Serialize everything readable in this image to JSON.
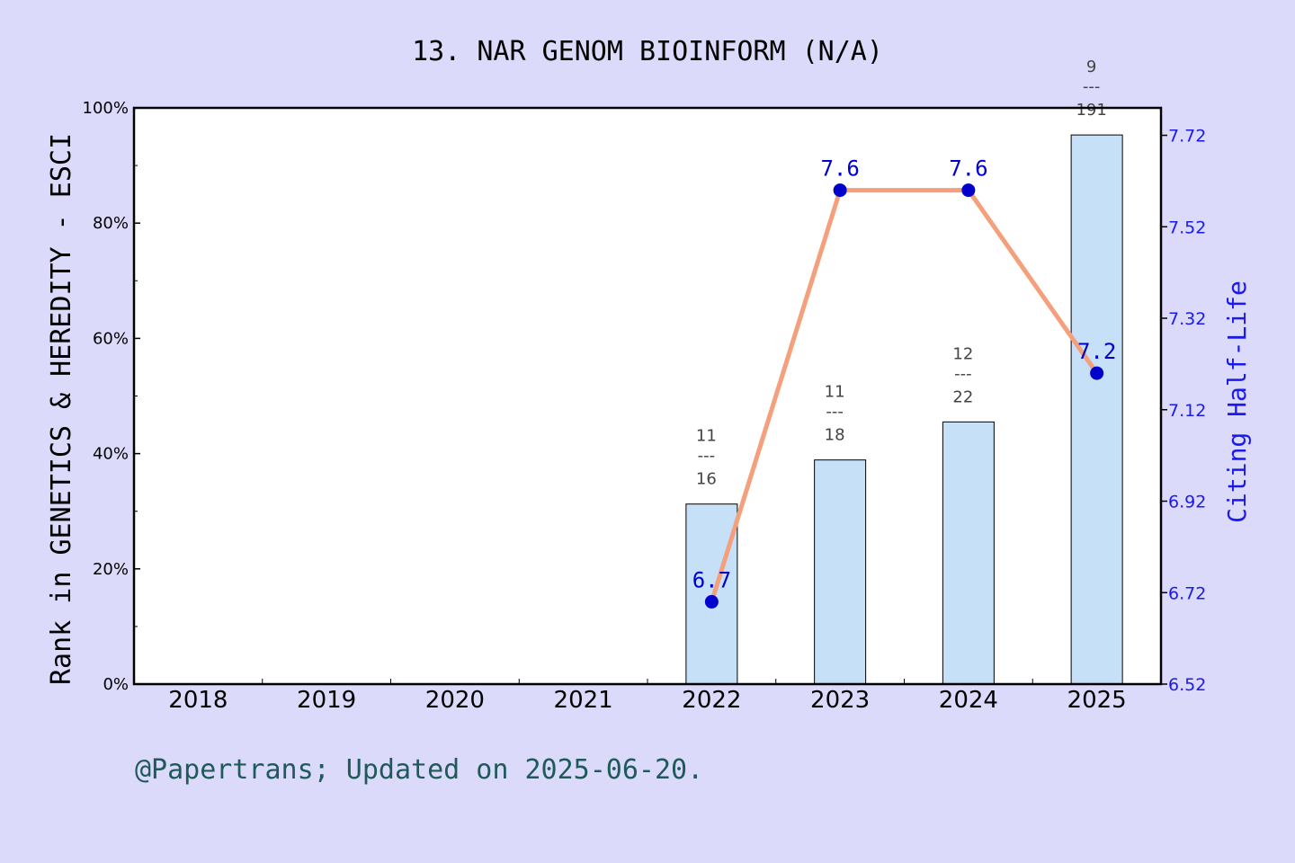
{
  "chart_data": {
    "type": "bar",
    "title": "13. NAR GENOM BIOINFORM (N/A)",
    "footer": "@Papertrans; Updated on 2025-06-20.",
    "categories": [
      "2018",
      "2019",
      "2020",
      "2021",
      "2022",
      "2023",
      "2024",
      "2025"
    ],
    "ylabel_left": "Rank in GENETICS & HEREDITY - ESCI",
    "ylabel_right": "Citing Half-Life",
    "y_left": {
      "range": [
        0,
        100
      ],
      "ticks": [
        0,
        20,
        40,
        60,
        80,
        100
      ],
      "tick_labels": [
        "0%",
        "20%",
        "40%",
        "60%",
        "80%",
        "100%"
      ]
    },
    "y_right": {
      "range": [
        6.52,
        7.78
      ],
      "ticks": [
        6.52,
        6.72,
        6.92,
        7.12,
        7.32,
        7.52,
        7.72
      ],
      "tick_labels": [
        "6.52",
        "6.72",
        "6.92",
        "7.12",
        "7.32",
        "7.52",
        "7.72"
      ]
    },
    "series": [
      {
        "name": "Rank",
        "kind": "bar",
        "axis": "left",
        "color": "#c5e0f7",
        "points": [
          {
            "category": "2022",
            "value": 31.25,
            "rank": "11",
            "total": "16"
          },
          {
            "category": "2023",
            "value": 38.9,
            "rank": "11",
            "total": "18"
          },
          {
            "category": "2024",
            "value": 45.5,
            "rank": "12",
            "total": "22"
          },
          {
            "category": "2025",
            "value": 95.3,
            "rank": "9",
            "total": "191"
          }
        ]
      },
      {
        "name": "Citing Half-Life",
        "kind": "line",
        "axis": "right",
        "color": "#f4a07c",
        "marker_color": "#0000cc",
        "points": [
          {
            "category": "2022",
            "value": 6.7,
            "label": "6.7"
          },
          {
            "category": "2023",
            "value": 7.6,
            "label": "7.6"
          },
          {
            "category": "2024",
            "value": 7.6,
            "label": "7.6"
          },
          {
            "category": "2025",
            "value": 7.2,
            "label": "7.2"
          }
        ]
      }
    ],
    "fraction_divider": "---",
    "grid": false,
    "legend": "none"
  }
}
